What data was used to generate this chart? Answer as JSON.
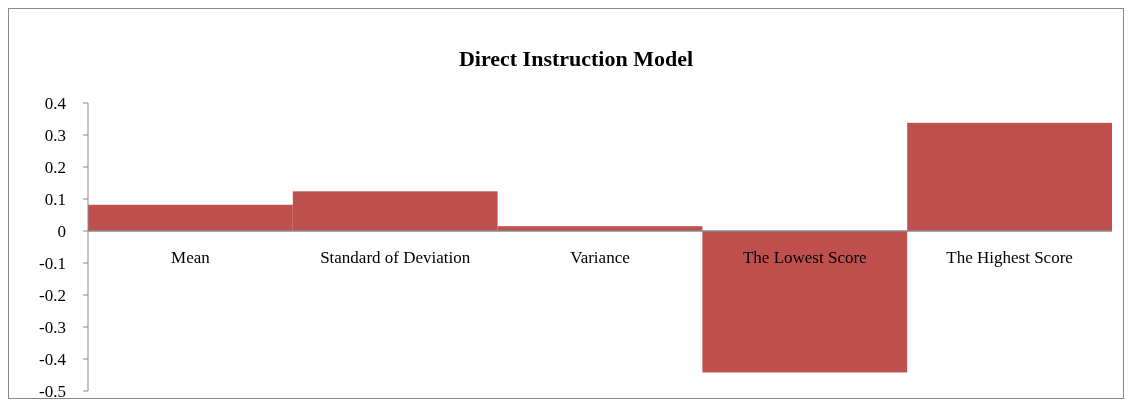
{
  "chart_data": {
    "type": "bar",
    "title": "Direct Instruction Model",
    "categories": [
      "Mean",
      "Standard of Deviation",
      "Variance",
      "The Lowest Score",
      "The Highest Score"
    ],
    "values": [
      0.082,
      0.124,
      0.015,
      -0.442,
      0.338
    ],
    "color": "#c0504d",
    "ylim": [
      -0.5,
      0.4
    ],
    "yticks": [
      -0.5,
      -0.4,
      -0.3,
      -0.2,
      -0.1,
      0,
      0.1,
      0.2,
      0.3,
      0.4
    ],
    "grid": false
  }
}
